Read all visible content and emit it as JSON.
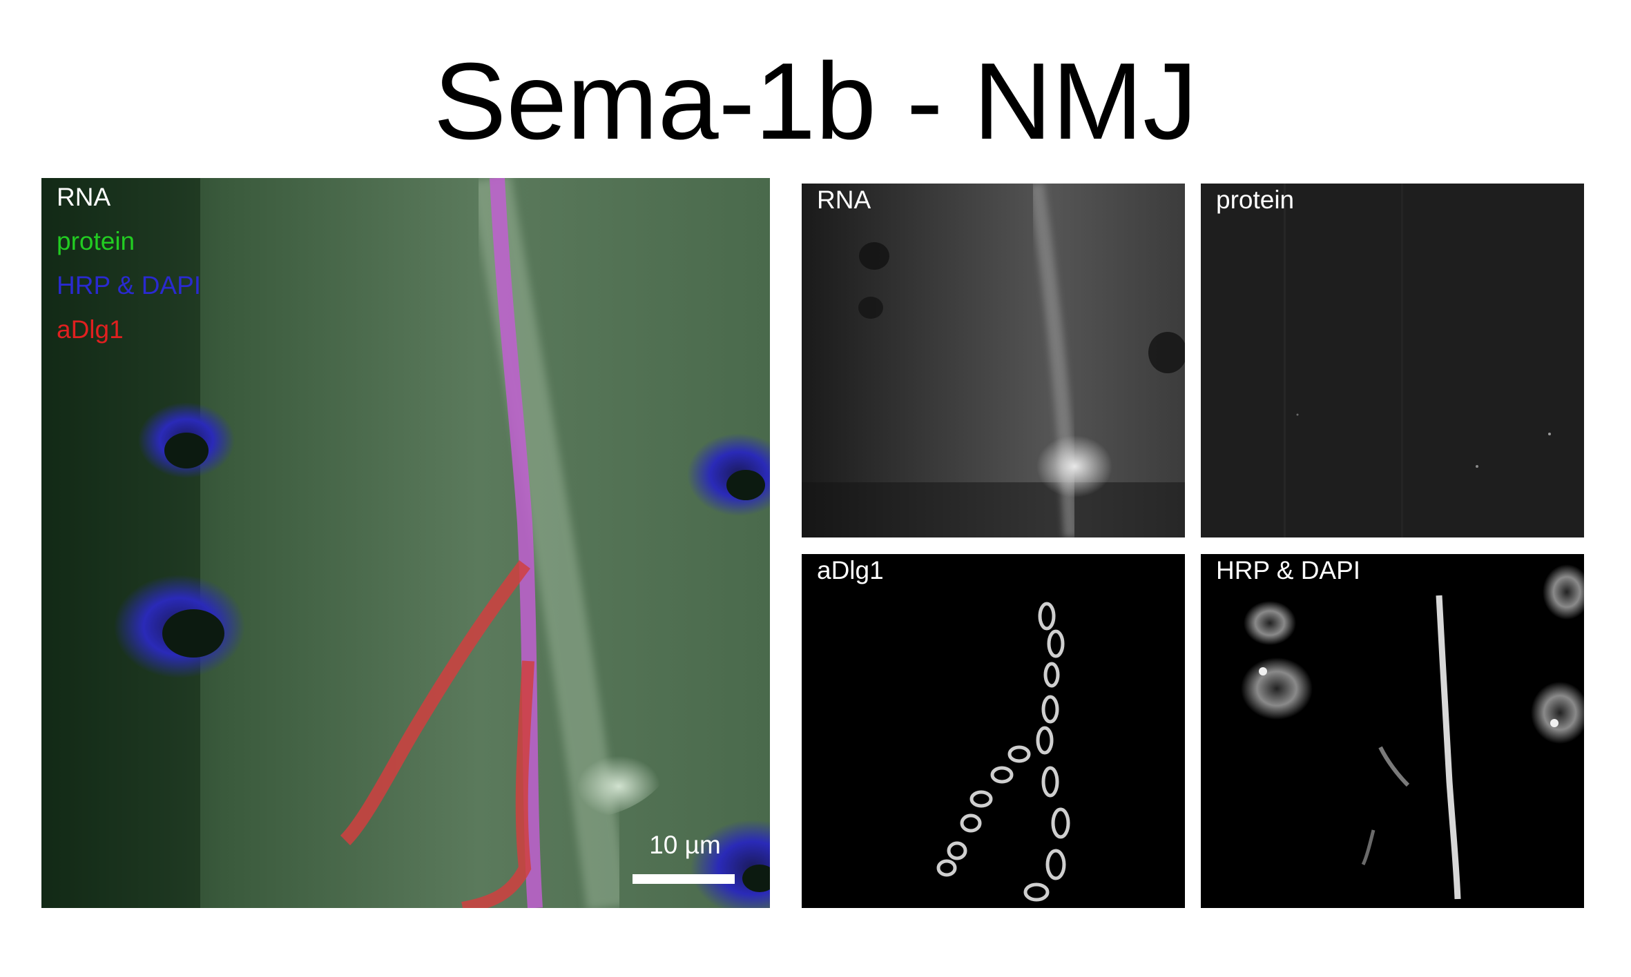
{
  "title": "Sema-1b - NMJ",
  "colors": {
    "rna": "#ffffff",
    "protein": "#22cc22",
    "hrp_dapi": "#2a2ad0",
    "adlg1": "#e02020",
    "panel_background": "#000000"
  },
  "merge_panel": {
    "legend": [
      {
        "label": "RNA",
        "color": "#ffffff"
      },
      {
        "label": "protein",
        "color": "#22cc22"
      },
      {
        "label": "HRP & DAPI",
        "color": "#2a2ad0"
      },
      {
        "label": "aDlg1",
        "color": "#e02020"
      }
    ],
    "scale_bar_label": "10 µm"
  },
  "channel_panels": {
    "rna": {
      "label": "RNA"
    },
    "protein": {
      "label": "protein"
    },
    "adlg1": {
      "label": "aDlg1"
    },
    "hrp_dapi": {
      "label": "HRP & DAPI"
    }
  }
}
